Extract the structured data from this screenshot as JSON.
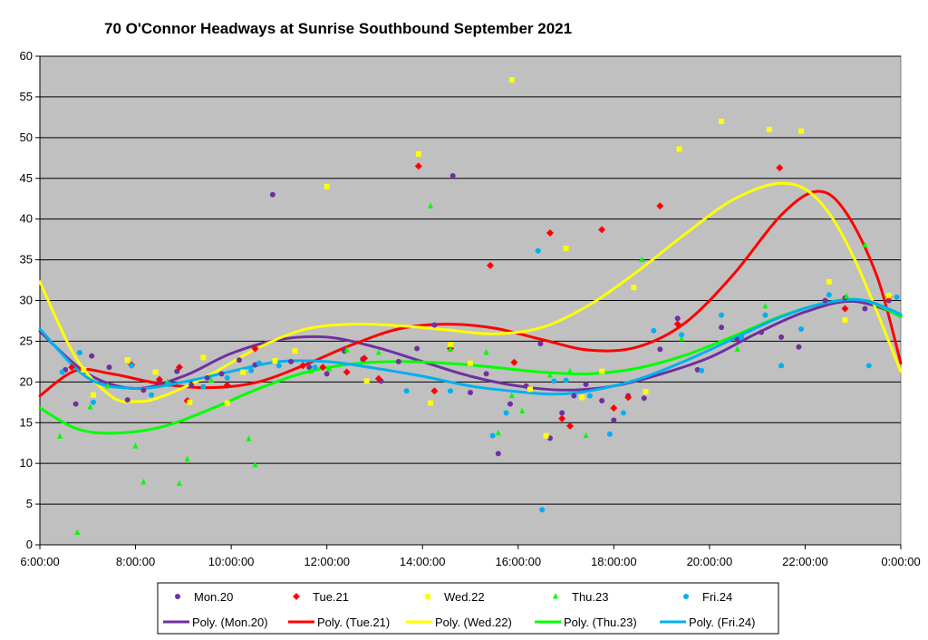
{
  "chart_data": {
    "type": "scatter",
    "title": "70 O'Connor Headways at Sunrise Southbound September 2021",
    "xlabel": "",
    "ylabel": "",
    "xlim": [
      "6:00:00",
      "0:00:00"
    ],
    "ylim": [
      0,
      60
    ],
    "x_ticks": [
      "6:00:00",
      "8:00:00",
      "10:00:00",
      "12:00:00",
      "14:00:00",
      "16:00:00",
      "18:00:00",
      "20:00:00",
      "22:00:00",
      "0:00:00"
    ],
    "y_ticks": [
      "0",
      "5",
      "10",
      "15",
      "20",
      "25",
      "30",
      "35",
      "40",
      "45",
      "50",
      "55",
      "60"
    ],
    "grid": "horizontal",
    "legend_position": "bottom",
    "colors": {
      "plot_background": "#c0c0c0",
      "Mon.20": "#7030a0",
      "Tue.21": "#ff0000",
      "Wed.22": "#ffff00",
      "Thu.23": "#00ff00",
      "Fri.24": "#00b0f0"
    },
    "series": [
      {
        "name": "Mon.20",
        "marker": "circle",
        "color": "#7030a0",
        "points": [
          [
            "6:32",
            21.5
          ],
          [
            "6:45",
            17.3
          ],
          [
            "7:05",
            23.2
          ],
          [
            "7:27",
            21.8
          ],
          [
            "7:50",
            17.8
          ],
          [
            "8:10",
            19.0
          ],
          [
            "8:30",
            20.0
          ],
          [
            "8:52",
            21.3
          ],
          [
            "9:10",
            19.6
          ],
          [
            "9:30",
            20.5
          ],
          [
            "9:48",
            21.0
          ],
          [
            "10:10",
            22.7
          ],
          [
            "10:30",
            22.1
          ],
          [
            "10:52",
            43.0
          ],
          [
            "11:15",
            22.5
          ],
          [
            "11:38",
            21.8
          ],
          [
            "12:00",
            21.0
          ],
          [
            "12:22",
            23.8
          ],
          [
            "12:45",
            22.8
          ],
          [
            "13:08",
            20.1
          ],
          [
            "13:30",
            22.5
          ],
          [
            "13:53",
            24.1
          ],
          [
            "14:15",
            27.0
          ],
          [
            "14:38",
            45.3
          ],
          [
            "15:00",
            18.7
          ],
          [
            "15:20",
            21.0
          ],
          [
            "15:35",
            11.2
          ],
          [
            "15:50",
            17.3
          ],
          [
            "16:10",
            19.5
          ],
          [
            "16:28",
            24.7
          ],
          [
            "16:40",
            13.1
          ],
          [
            "16:55",
            16.2
          ],
          [
            "17:10",
            18.3
          ],
          [
            "17:25",
            19.7
          ],
          [
            "17:45",
            17.7
          ],
          [
            "18:00",
            15.3
          ],
          [
            "18:18",
            18.3
          ],
          [
            "18:38",
            18.0
          ],
          [
            "18:58",
            24.0
          ],
          [
            "19:20",
            27.8
          ],
          [
            "19:45",
            21.5
          ],
          [
            "20:15",
            26.7
          ],
          [
            "20:35",
            25.2
          ],
          [
            "21:05",
            26.1
          ],
          [
            "21:30",
            25.5
          ],
          [
            "21:52",
            24.3
          ],
          [
            "22:25",
            30.0
          ],
          [
            "22:50",
            30.3
          ],
          [
            "23:15",
            29.0
          ],
          [
            "23:45",
            30.0
          ]
        ]
      },
      {
        "name": "Tue.21",
        "marker": "diamond",
        "color": "#ff0000",
        "points": [
          [
            "6:40",
            21.8
          ],
          [
            "7:55",
            22.1
          ],
          [
            "8:30",
            20.3
          ],
          [
            "8:55",
            21.8
          ],
          [
            "9:05",
            17.7
          ],
          [
            "9:55",
            19.6
          ],
          [
            "10:30",
            24.1
          ],
          [
            "11:30",
            22.0
          ],
          [
            "11:55",
            21.8
          ],
          [
            "12:25",
            21.2
          ],
          [
            "12:47",
            22.9
          ],
          [
            "13:05",
            20.4
          ],
          [
            "13:55",
            46.5
          ],
          [
            "14:15",
            18.9
          ],
          [
            "14:35",
            24.1
          ],
          [
            "15:25",
            34.3
          ],
          [
            "15:55",
            22.4
          ],
          [
            "16:40",
            38.3
          ],
          [
            "16:55",
            15.5
          ],
          [
            "17:05",
            14.6
          ],
          [
            "17:45",
            38.7
          ],
          [
            "18:00",
            16.8
          ],
          [
            "18:18",
            18.1
          ],
          [
            "18:58",
            41.6
          ],
          [
            "19:20",
            27.1
          ],
          [
            "21:28",
            46.3
          ],
          [
            "22:50",
            29.0
          ],
          [
            "23:45",
            30.4
          ]
        ]
      },
      {
        "name": "Wed.22",
        "marker": "square",
        "color": "#ffff00",
        "points": [
          [
            "6:55",
            21.5
          ],
          [
            "7:07",
            18.4
          ],
          [
            "7:50",
            22.7
          ],
          [
            "8:25",
            21.2
          ],
          [
            "9:08",
            17.5
          ],
          [
            "9:25",
            23.0
          ],
          [
            "9:55",
            17.4
          ],
          [
            "10:15",
            21.2
          ],
          [
            "10:55",
            22.6
          ],
          [
            "11:20",
            23.8
          ],
          [
            "12:00",
            44.0
          ],
          [
            "12:50",
            20.1
          ],
          [
            "13:55",
            48.0
          ],
          [
            "14:10",
            17.4
          ],
          [
            "14:35",
            24.6
          ],
          [
            "15:00",
            22.3
          ],
          [
            "15:52",
            57.1
          ],
          [
            "16:15",
            19.1
          ],
          [
            "16:35",
            13.4
          ],
          [
            "17:00",
            36.4
          ],
          [
            "17:20",
            18.1
          ],
          [
            "17:45",
            21.3
          ],
          [
            "18:25",
            31.6
          ],
          [
            "18:40",
            18.8
          ],
          [
            "19:22",
            48.6
          ],
          [
            "20:15",
            52.0
          ],
          [
            "21:15",
            51.0
          ],
          [
            "21:55",
            50.8
          ],
          [
            "22:30",
            32.3
          ],
          [
            "22:50",
            27.6
          ],
          [
            "23:45",
            30.6
          ]
        ]
      },
      {
        "name": "Thu.23",
        "marker": "triangle",
        "color": "#00ff00",
        "points": [
          [
            "6:25",
            13.3
          ],
          [
            "6:47",
            1.5
          ],
          [
            "7:03",
            16.9
          ],
          [
            "7:25",
            19.5
          ],
          [
            "8:00",
            12.1
          ],
          [
            "8:10",
            7.7
          ],
          [
            "8:40",
            20.0
          ],
          [
            "8:55",
            7.5
          ],
          [
            "9:05",
            10.5
          ],
          [
            "9:35",
            20.2
          ],
          [
            "10:22",
            13.0
          ],
          [
            "10:30",
            9.8
          ],
          [
            "11:40",
            21.3
          ],
          [
            "12:03",
            21.6
          ],
          [
            "12:25",
            23.9
          ],
          [
            "13:05",
            23.6
          ],
          [
            "14:10",
            41.6
          ],
          [
            "14:35",
            24.0
          ],
          [
            "15:20",
            23.6
          ],
          [
            "15:35",
            13.7
          ],
          [
            "15:52",
            18.3
          ],
          [
            "16:05",
            16.4
          ],
          [
            "16:40",
            20.8
          ],
          [
            "17:05",
            21.3
          ],
          [
            "17:25",
            13.4
          ],
          [
            "18:35",
            35.0
          ],
          [
            "19:25",
            25.3
          ],
          [
            "20:35",
            24.0
          ],
          [
            "21:10",
            29.3
          ],
          [
            "21:30",
            22.0
          ],
          [
            "22:52",
            30.5
          ],
          [
            "23:15",
            36.8
          ]
        ]
      },
      {
        "name": "Fri.24",
        "marker": "circle",
        "color": "#00b0f0",
        "points": [
          [
            "6:28",
            21.2
          ],
          [
            "6:50",
            23.6
          ],
          [
            "7:07",
            17.5
          ],
          [
            "7:55",
            22.0
          ],
          [
            "8:20",
            18.4
          ],
          [
            "8:42",
            19.7
          ],
          [
            "9:25",
            19.4
          ],
          [
            "9:55",
            20.5
          ],
          [
            "10:25",
            21.4
          ],
          [
            "10:35",
            22.3
          ],
          [
            "11:00",
            22.0
          ],
          [
            "11:45",
            21.8
          ],
          [
            "13:40",
            18.9
          ],
          [
            "14:35",
            18.9
          ],
          [
            "15:28",
            13.4
          ],
          [
            "15:45",
            16.2
          ],
          [
            "16:25",
            36.1
          ],
          [
            "16:30",
            4.3
          ],
          [
            "16:45",
            20.1
          ],
          [
            "17:00",
            20.2
          ],
          [
            "17:30",
            18.3
          ],
          [
            "17:55",
            13.6
          ],
          [
            "18:12",
            16.2
          ],
          [
            "18:50",
            26.3
          ],
          [
            "19:25",
            25.8
          ],
          [
            "19:50",
            21.4
          ],
          [
            "20:15",
            28.2
          ],
          [
            "20:40",
            25.5
          ],
          [
            "21:10",
            28.2
          ],
          [
            "21:30",
            22.0
          ],
          [
            "21:55",
            26.5
          ],
          [
            "22:30",
            30.7
          ],
          [
            "23:20",
            22.0
          ],
          [
            "23:55",
            30.4
          ]
        ]
      }
    ],
    "trendlines": [
      {
        "name": "Poly. (Mon.20)",
        "color": "#7030a0",
        "points": [
          [
            "6:00",
            26.2
          ],
          [
            "7:00",
            21.0
          ],
          [
            "8:00",
            19.2
          ],
          [
            "9:00",
            20.7
          ],
          [
            "10:00",
            23.5
          ],
          [
            "11:00",
            25.2
          ],
          [
            "12:00",
            25.5
          ],
          [
            "13:00",
            24.3
          ],
          [
            "14:00",
            22.5
          ],
          [
            "15:00",
            20.7
          ],
          [
            "16:00",
            19.5
          ],
          [
            "17:00",
            19.0
          ],
          [
            "18:00",
            19.5
          ],
          [
            "19:00",
            21.0
          ],
          [
            "20:00",
            23.0
          ],
          [
            "21:00",
            26.0
          ],
          [
            "22:00",
            28.6
          ],
          [
            "23:00",
            29.9
          ],
          [
            "24:00",
            28.2
          ]
        ]
      },
      {
        "name": "Poly. (Tue.21)",
        "color": "#ff0000",
        "points": [
          [
            "6:00",
            18.3
          ],
          [
            "6:45",
            21.4
          ],
          [
            "7:30",
            21.0
          ],
          [
            "8:30",
            19.8
          ],
          [
            "9:30",
            19.3
          ],
          [
            "10:30",
            19.9
          ],
          [
            "11:30",
            22.0
          ],
          [
            "12:30",
            24.5
          ],
          [
            "13:30",
            26.5
          ],
          [
            "14:30",
            27.1
          ],
          [
            "15:30",
            26.6
          ],
          [
            "16:30",
            25.2
          ],
          [
            "17:30",
            23.9
          ],
          [
            "18:30",
            24.3
          ],
          [
            "19:30",
            27.3
          ],
          [
            "20:30",
            33.2
          ],
          [
            "21:30",
            40.5
          ],
          [
            "22:15",
            43.4
          ],
          [
            "22:50",
            41.0
          ],
          [
            "23:30",
            33.0
          ],
          [
            "24:00",
            22.3
          ]
        ]
      },
      {
        "name": "Poly. (Wed.22)",
        "color": "#ffff00",
        "points": [
          [
            "6:00",
            32.3
          ],
          [
            "6:45",
            23.0
          ],
          [
            "7:30",
            18.2
          ],
          [
            "8:00",
            17.6
          ],
          [
            "8:30",
            18.1
          ],
          [
            "9:30",
            20.7
          ],
          [
            "10:30",
            24.0
          ],
          [
            "11:30",
            26.4
          ],
          [
            "12:30",
            27.1
          ],
          [
            "13:30",
            26.9
          ],
          [
            "14:30",
            26.4
          ],
          [
            "15:30",
            25.9
          ],
          [
            "16:30",
            26.7
          ],
          [
            "17:30",
            29.5
          ],
          [
            "18:30",
            33.6
          ],
          [
            "19:30",
            38.2
          ],
          [
            "20:30",
            42.4
          ],
          [
            "21:30",
            44.4
          ],
          [
            "22:15",
            42.5
          ],
          [
            "23:00",
            35.5
          ],
          [
            "24:00",
            21.3
          ]
        ]
      },
      {
        "name": "Poly. (Thu.23)",
        "color": "#00ff00",
        "points": [
          [
            "6:00",
            16.8
          ],
          [
            "6:45",
            14.3
          ],
          [
            "7:30",
            13.7
          ],
          [
            "8:30",
            14.4
          ],
          [
            "9:30",
            16.5
          ],
          [
            "10:30",
            19.0
          ],
          [
            "11:30",
            21.1
          ],
          [
            "12:30",
            22.2
          ],
          [
            "13:30",
            22.5
          ],
          [
            "14:30",
            22.3
          ],
          [
            "15:30",
            21.8
          ],
          [
            "16:30",
            21.2
          ],
          [
            "17:30",
            21.0
          ],
          [
            "18:30",
            21.7
          ],
          [
            "19:30",
            23.3
          ],
          [
            "20:30",
            25.6
          ],
          [
            "21:30",
            28.1
          ],
          [
            "22:30",
            29.8
          ],
          [
            "23:15",
            30.0
          ],
          [
            "24:00",
            28.0
          ]
        ]
      },
      {
        "name": "Poly. (Fri.24)",
        "color": "#00b0f0",
        "points": [
          [
            "6:00",
            26.5
          ],
          [
            "7:00",
            20.5
          ],
          [
            "8:00",
            19.2
          ],
          [
            "9:00",
            20.0
          ],
          [
            "10:00",
            21.3
          ],
          [
            "11:00",
            22.5
          ],
          [
            "12:00",
            22.5
          ],
          [
            "13:00",
            21.7
          ],
          [
            "14:00",
            20.7
          ],
          [
            "15:00",
            19.5
          ],
          [
            "16:00",
            18.8
          ],
          [
            "16:45",
            18.5
          ],
          [
            "17:30",
            18.9
          ],
          [
            "18:30",
            20.3
          ],
          [
            "19:30",
            22.6
          ],
          [
            "20:30",
            25.3
          ],
          [
            "21:30",
            28.0
          ],
          [
            "22:30",
            29.8
          ],
          [
            "23:15",
            30.0
          ],
          [
            "24:00",
            28.3
          ]
        ]
      }
    ],
    "legend": [
      "Mon.20",
      "Tue.21",
      "Wed.22",
      "Thu.23",
      "Fri.24",
      "Poly. (Mon.20)",
      "Poly. (Tue.21)",
      "Poly. (Wed.22)",
      "Poly. (Thu.23)",
      "Poly. (Fri.24)"
    ]
  }
}
